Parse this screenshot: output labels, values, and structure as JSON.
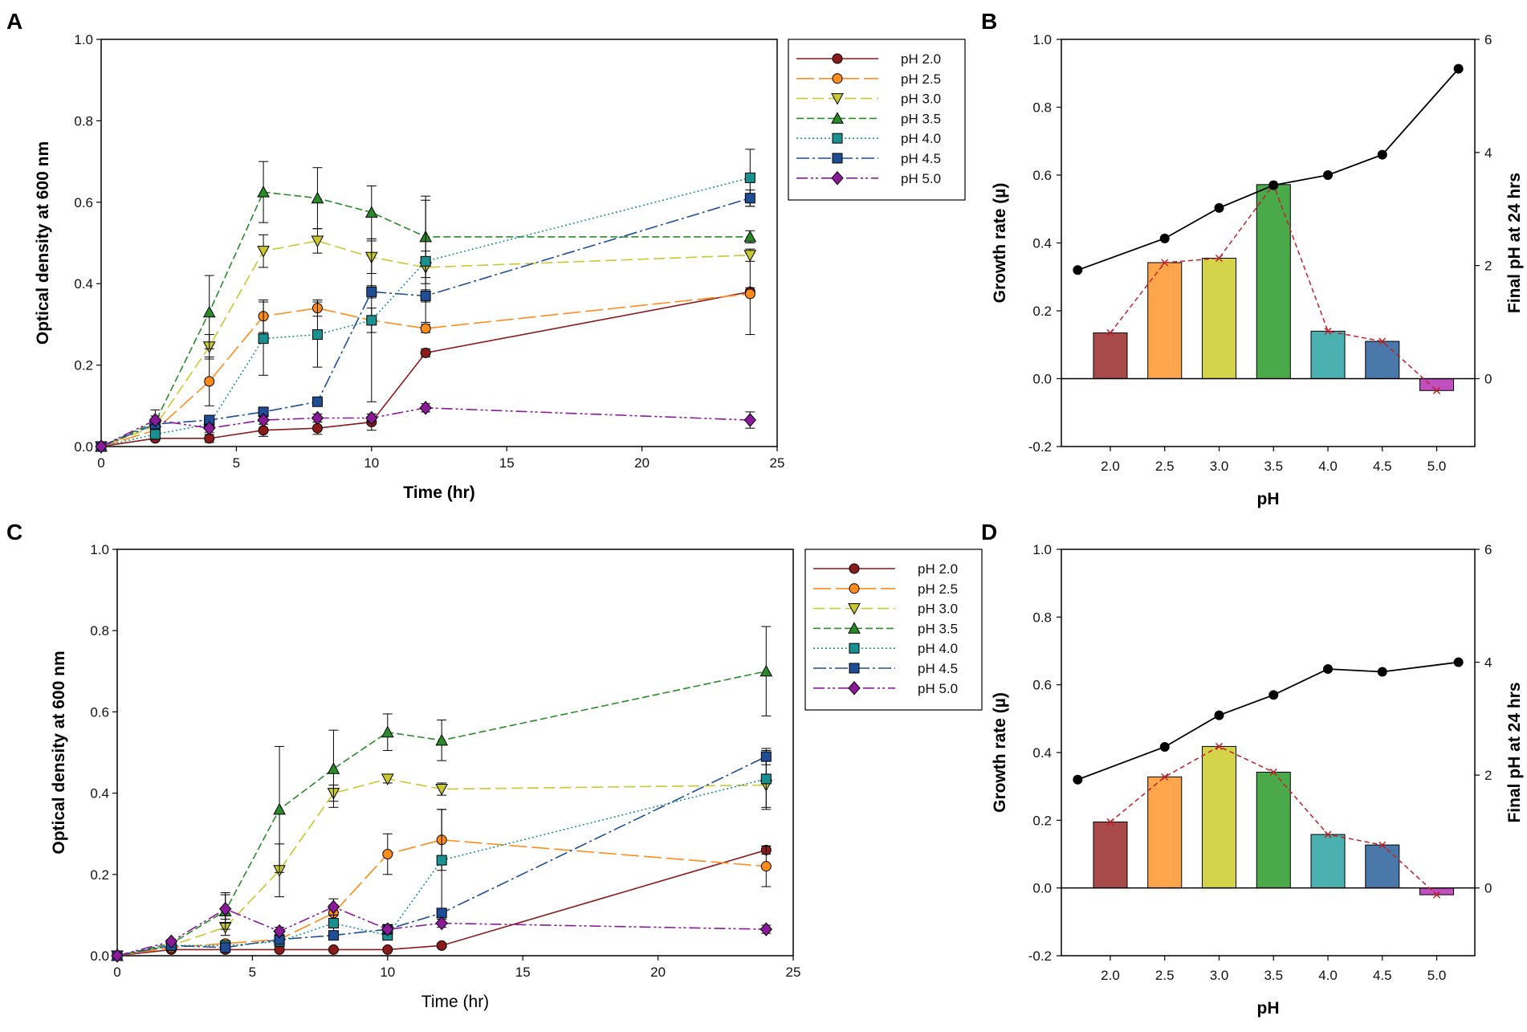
{
  "chart_data": [
    {
      "panel": "A",
      "type": "line",
      "xlabel": "Time (hr)",
      "ylabel": "Optical density at 600 nm",
      "xlabel_bold": true,
      "xlim": [
        0,
        25
      ],
      "ylim": [
        0,
        1.0
      ],
      "xticks": [
        0,
        5,
        10,
        15,
        20,
        25
      ],
      "yticks": [
        0.0,
        0.2,
        0.4,
        0.6,
        0.8,
        1.0
      ],
      "legend_position": "top-right-outside",
      "series": [
        {
          "name": "pH 2.0",
          "color": "#8b1a1a",
          "dash": "solid",
          "marker": "circle",
          "x": [
            0,
            2,
            4,
            6,
            8,
            10,
            12,
            24
          ],
          "y": [
            0,
            0.02,
            0.02,
            0.04,
            0.045,
            0.06,
            0.23,
            0.38
          ],
          "err": [
            0,
            0.005,
            0.01,
            0.015,
            0.015,
            0.02,
            0.01,
            0.01
          ]
        },
        {
          "name": "pH 2.5",
          "color": "#ff8c1a",
          "dash": "longdash",
          "marker": "circle",
          "x": [
            0,
            2,
            4,
            6,
            8,
            10,
            12,
            24
          ],
          "y": [
            0,
            0.04,
            0.16,
            0.32,
            0.34,
            0.31,
            0.29,
            0.375
          ],
          "err": [
            0,
            0.01,
            0.06,
            0.04,
            0.02,
            0.03,
            0.01,
            0.1
          ]
        },
        {
          "name": "pH 3.0",
          "color": "#c8c830",
          "dash": "dash",
          "marker": "triangle-down",
          "x": [
            0,
            2,
            4,
            6,
            8,
            10,
            12,
            24
          ],
          "y": [
            0,
            0.05,
            0.245,
            0.48,
            0.505,
            0.465,
            0.44,
            0.47
          ],
          "err": [
            0,
            0.01,
            0.03,
            0.04,
            0.03,
            0.04,
            0.04,
            0.015
          ]
        },
        {
          "name": "pH 3.5",
          "color": "#2a8a2a",
          "dash": "shortdash",
          "marker": "triangle-up",
          "x": [
            0,
            2,
            4,
            6,
            8,
            10,
            12,
            24
          ],
          "y": [
            0,
            0.06,
            0.33,
            0.625,
            0.61,
            0.575,
            0.515,
            0.515
          ],
          "err": [
            0,
            0.03,
            0.09,
            0.075,
            0.075,
            0.065,
            0.1,
            0.015
          ]
        },
        {
          "name": "pH 4.0",
          "color": "#1a9090",
          "dash": "dot",
          "marker": "square",
          "x": [
            0,
            2,
            4,
            6,
            8,
            10,
            12,
            24
          ],
          "y": [
            0,
            0.03,
            0.055,
            0.265,
            0.275,
            0.31,
            0.455,
            0.66
          ],
          "err": [
            0,
            0.005,
            0.01,
            0.09,
            0.08,
            0.2,
            0.15,
            0.07
          ]
        },
        {
          "name": "pH 4.5",
          "color": "#1f4e96",
          "dash": "dashdot",
          "marker": "square",
          "x": [
            0,
            2,
            4,
            6,
            8,
            10,
            12,
            24
          ],
          "y": [
            0,
            0.055,
            0.065,
            0.085,
            0.11,
            0.38,
            0.37,
            0.61
          ],
          "err": [
            0,
            0.01,
            0.01,
            0.01,
            0.01,
            0.015,
            0.015,
            0.02
          ]
        },
        {
          "name": "pH 5.0",
          "color": "#8b1a9a",
          "dash": "dashdotdot",
          "marker": "diamond",
          "x": [
            0,
            2,
            4,
            6,
            8,
            10,
            12,
            24
          ],
          "y": [
            0,
            0.065,
            0.045,
            0.065,
            0.07,
            0.07,
            0.095,
            0.065
          ],
          "err": [
            0,
            0.01,
            0.01,
            0.01,
            0.01,
            0.01,
            0.01,
            0.02
          ]
        }
      ]
    },
    {
      "panel": "B",
      "type": "bar",
      "xlabel": "pH",
      "ylabel": "Growth rate (µ)",
      "ylabel_right": "Final pH at 24 hrs",
      "categories": [
        "2.0",
        "2.5",
        "3.0",
        "3.5",
        "4.0",
        "4.5",
        "5.0"
      ],
      "ylim": [
        -0.2,
        1.0
      ],
      "yticks": [
        -0.2,
        0.0,
        0.2,
        0.4,
        0.6,
        0.8,
        1.0
      ],
      "y2lim": [
        -1.2,
        6
      ],
      "y2ticks": [
        0,
        2,
        4,
        6
      ],
      "bar_colors": [
        "#a84a4a",
        "#ffa64d",
        "#d4d44a",
        "#4aaa4a",
        "#4ab0b0",
        "#4a78aa",
        "#c050c0"
      ],
      "values": [
        0.135,
        0.342,
        0.355,
        0.572,
        0.14,
        0.11,
        -0.035
      ],
      "growth_rate_line": [
        0.135,
        0.342,
        0.355,
        0.572,
        0.14,
        0.11,
        -0.035
      ],
      "final_ph_x": [
        1.7,
        2.5,
        3.0,
        3.5,
        4.0,
        4.5,
        5.2
      ],
      "final_ph": [
        1.92,
        2.48,
        3.02,
        3.42,
        3.6,
        3.96,
        5.48
      ]
    },
    {
      "panel": "C",
      "type": "line",
      "xlabel": "Time (hr)",
      "ylabel": "Optical density at 600 nm",
      "xlabel_bold": false,
      "xlim": [
        0,
        25
      ],
      "ylim": [
        0,
        1.0
      ],
      "xticks": [
        0,
        5,
        10,
        15,
        20,
        25
      ],
      "yticks": [
        0.0,
        0.2,
        0.4,
        0.6,
        0.8,
        1.0
      ],
      "legend_position": "top-right-outside",
      "series": [
        {
          "name": "pH 2.0",
          "color": "#8b1a1a",
          "dash": "solid",
          "marker": "circle",
          "x": [
            0,
            2,
            4,
            6,
            8,
            10,
            12,
            24
          ],
          "y": [
            0,
            0.015,
            0.015,
            0.015,
            0.015,
            0.015,
            0.025,
            0.26
          ],
          "err": [
            0,
            0.005,
            0.005,
            0.005,
            0.005,
            0.005,
            0.005,
            0.01
          ]
        },
        {
          "name": "pH 2.5",
          "color": "#ff8c1a",
          "dash": "longdash",
          "marker": "circle",
          "x": [
            0,
            2,
            4,
            6,
            8,
            10,
            12,
            24
          ],
          "y": [
            0,
            0.02,
            0.03,
            0.04,
            0.105,
            0.25,
            0.285,
            0.22
          ],
          "err": [
            0,
            0.005,
            0.005,
            0.01,
            0.02,
            0.05,
            0.075,
            0.05
          ]
        },
        {
          "name": "pH 3.0",
          "color": "#c8c830",
          "dash": "dash",
          "marker": "triangle-down",
          "x": [
            0,
            2,
            4,
            6,
            8,
            10,
            12,
            24
          ],
          "y": [
            0,
            0.025,
            0.07,
            0.21,
            0.4,
            0.435,
            0.41,
            0.42
          ],
          "err": [
            0,
            0.005,
            0.02,
            0.065,
            0.02,
            0.01,
            0.015,
            0.06
          ]
        },
        {
          "name": "pH 3.5",
          "color": "#2a8a2a",
          "dash": "shortdash",
          "marker": "triangle-up",
          "x": [
            0,
            2,
            4,
            6,
            8,
            10,
            12,
            24
          ],
          "y": [
            0,
            0.03,
            0.11,
            0.36,
            0.46,
            0.55,
            0.53,
            0.7
          ],
          "err": [
            0,
            0.005,
            0.045,
            0.155,
            0.095,
            0.045,
            0.05,
            0.11
          ]
        },
        {
          "name": "pH 4.0",
          "color": "#1a9090",
          "dash": "dot",
          "marker": "square",
          "x": [
            0,
            2,
            4,
            6,
            8,
            10,
            12,
            24
          ],
          "y": [
            0,
            0.025,
            0.025,
            0.035,
            0.08,
            0.05,
            0.235,
            0.435
          ],
          "err": [
            0,
            0.005,
            0.005,
            0.01,
            0.02,
            0.01,
            0.125,
            0.07
          ]
        },
        {
          "name": "pH 4.5",
          "color": "#1f4e96",
          "dash": "dashdot",
          "marker": "square",
          "x": [
            0,
            2,
            4,
            6,
            8,
            10,
            12,
            24
          ],
          "y": [
            0,
            0.025,
            0.02,
            0.04,
            0.05,
            0.065,
            0.105,
            0.49
          ],
          "err": [
            0,
            0.005,
            0.005,
            0.01,
            0.01,
            0.01,
            0.01,
            0.02
          ]
        },
        {
          "name": "pH 5.0",
          "color": "#8b1a9a",
          "dash": "dashdotdot",
          "marker": "diamond",
          "x": [
            0,
            2,
            4,
            6,
            8,
            10,
            12,
            24
          ],
          "y": [
            0,
            0.035,
            0.115,
            0.06,
            0.12,
            0.065,
            0.08,
            0.065
          ],
          "err": [
            0,
            0.005,
            0.035,
            0.01,
            0.02,
            0.01,
            0.01,
            0.01
          ]
        }
      ]
    },
    {
      "panel": "D",
      "type": "bar",
      "xlabel": "pH",
      "ylabel": "Growth rate (µ)",
      "ylabel_right": "Final pH at 24 hrs",
      "categories": [
        "2.0",
        "2.5",
        "3.0",
        "3.5",
        "4.0",
        "4.5",
        "5.0"
      ],
      "ylim": [
        -0.2,
        1.0
      ],
      "yticks": [
        -0.2,
        0.0,
        0.2,
        0.4,
        0.6,
        0.8,
        1.0
      ],
      "y2lim": [
        -1.2,
        6
      ],
      "y2ticks": [
        0,
        2,
        4,
        6
      ],
      "bar_colors": [
        "#a84a4a",
        "#ffa64d",
        "#d4d44a",
        "#4aaa4a",
        "#4ab0b0",
        "#4a78aa",
        "#c050c0"
      ],
      "values": [
        0.195,
        0.328,
        0.418,
        0.342,
        0.158,
        0.127,
        -0.02
      ],
      "growth_rate_line": [
        0.195,
        0.328,
        0.418,
        0.342,
        0.158,
        0.127,
        -0.02
      ],
      "final_ph_x": [
        1.7,
        2.5,
        3.0,
        3.5,
        4.0,
        4.5,
        5.2
      ],
      "final_ph": [
        1.92,
        2.5,
        3.06,
        3.42,
        3.88,
        3.83,
        4.0
      ]
    }
  ]
}
